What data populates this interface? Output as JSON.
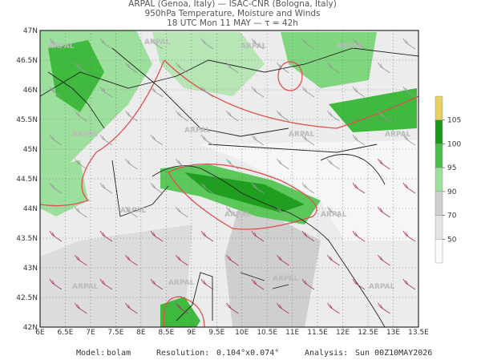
{
  "header": {
    "line1": "ARPAL (Genoa, Italy)  —  ISAC-CNR (Bologna, Italy)",
    "line2": "950hPa Temperature, Moisture and Winds",
    "line3": "18 UTC Mon 11 MAY  —  τ = 42h"
  },
  "map": {
    "lon_ticks": [
      "6E",
      "6.5E",
      "7E",
      "7.5E",
      "8E",
      "8.5E",
      "9E",
      "9.5E",
      "10E",
      "10.5E",
      "11E",
      "11.5E",
      "12E",
      "12.5E",
      "13E",
      "13.5E"
    ],
    "lat_ticks": [
      "47N",
      "46.5N",
      "46N",
      "45.5N",
      "45N",
      "44.5N",
      "44N",
      "43.5N",
      "43N",
      "42.5N",
      "42N"
    ],
    "watermark": "ARPAL"
  },
  "colorbar": {
    "ticks": [
      105,
      100,
      95,
      90,
      70,
      50
    ]
  },
  "footer": {
    "model_label": "Model:",
    "model": "bolam",
    "resolution_label": "Resolution:",
    "resolution": "0.104°x0.074°",
    "analysis_label": "Analysis:",
    "analysis": "Sun 00Z10MAY2026"
  }
}
